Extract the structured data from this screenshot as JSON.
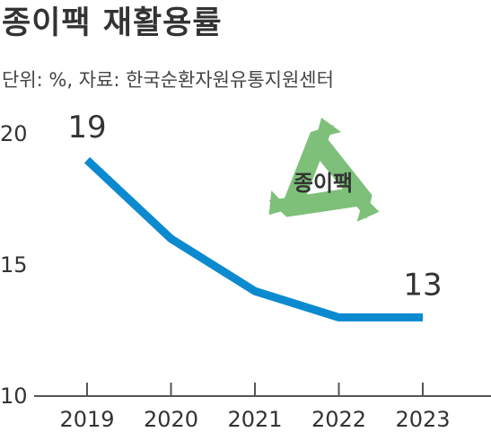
{
  "header": {
    "title": "종이팩 재활용률",
    "subtitle": "단위: %, 자료: 한국순환자원유통지원센터"
  },
  "badge": {
    "label": "종이팩",
    "icon": "recycle-icon",
    "color": "#7ec07a"
  },
  "colors": {
    "line": "#0b8ad0",
    "axis": "#555555",
    "text": "#333333"
  },
  "chart_data": {
    "type": "line",
    "title": "종이팩 재활용률",
    "subtitle": "단위: %, 자료: 한국순환자원유통지원센터",
    "xlabel": "",
    "ylabel": "",
    "categories": [
      "2019",
      "2020",
      "2021",
      "2022",
      "2023"
    ],
    "values": [
      19,
      16,
      14,
      13,
      13
    ],
    "data_labels": [
      {
        "category": "2019",
        "text": "19"
      },
      {
        "category": "2023",
        "text": "13"
      }
    ],
    "yticks": [
      10,
      15,
      20
    ],
    "ylim": [
      10,
      20
    ],
    "grid": false,
    "legend": "none"
  }
}
